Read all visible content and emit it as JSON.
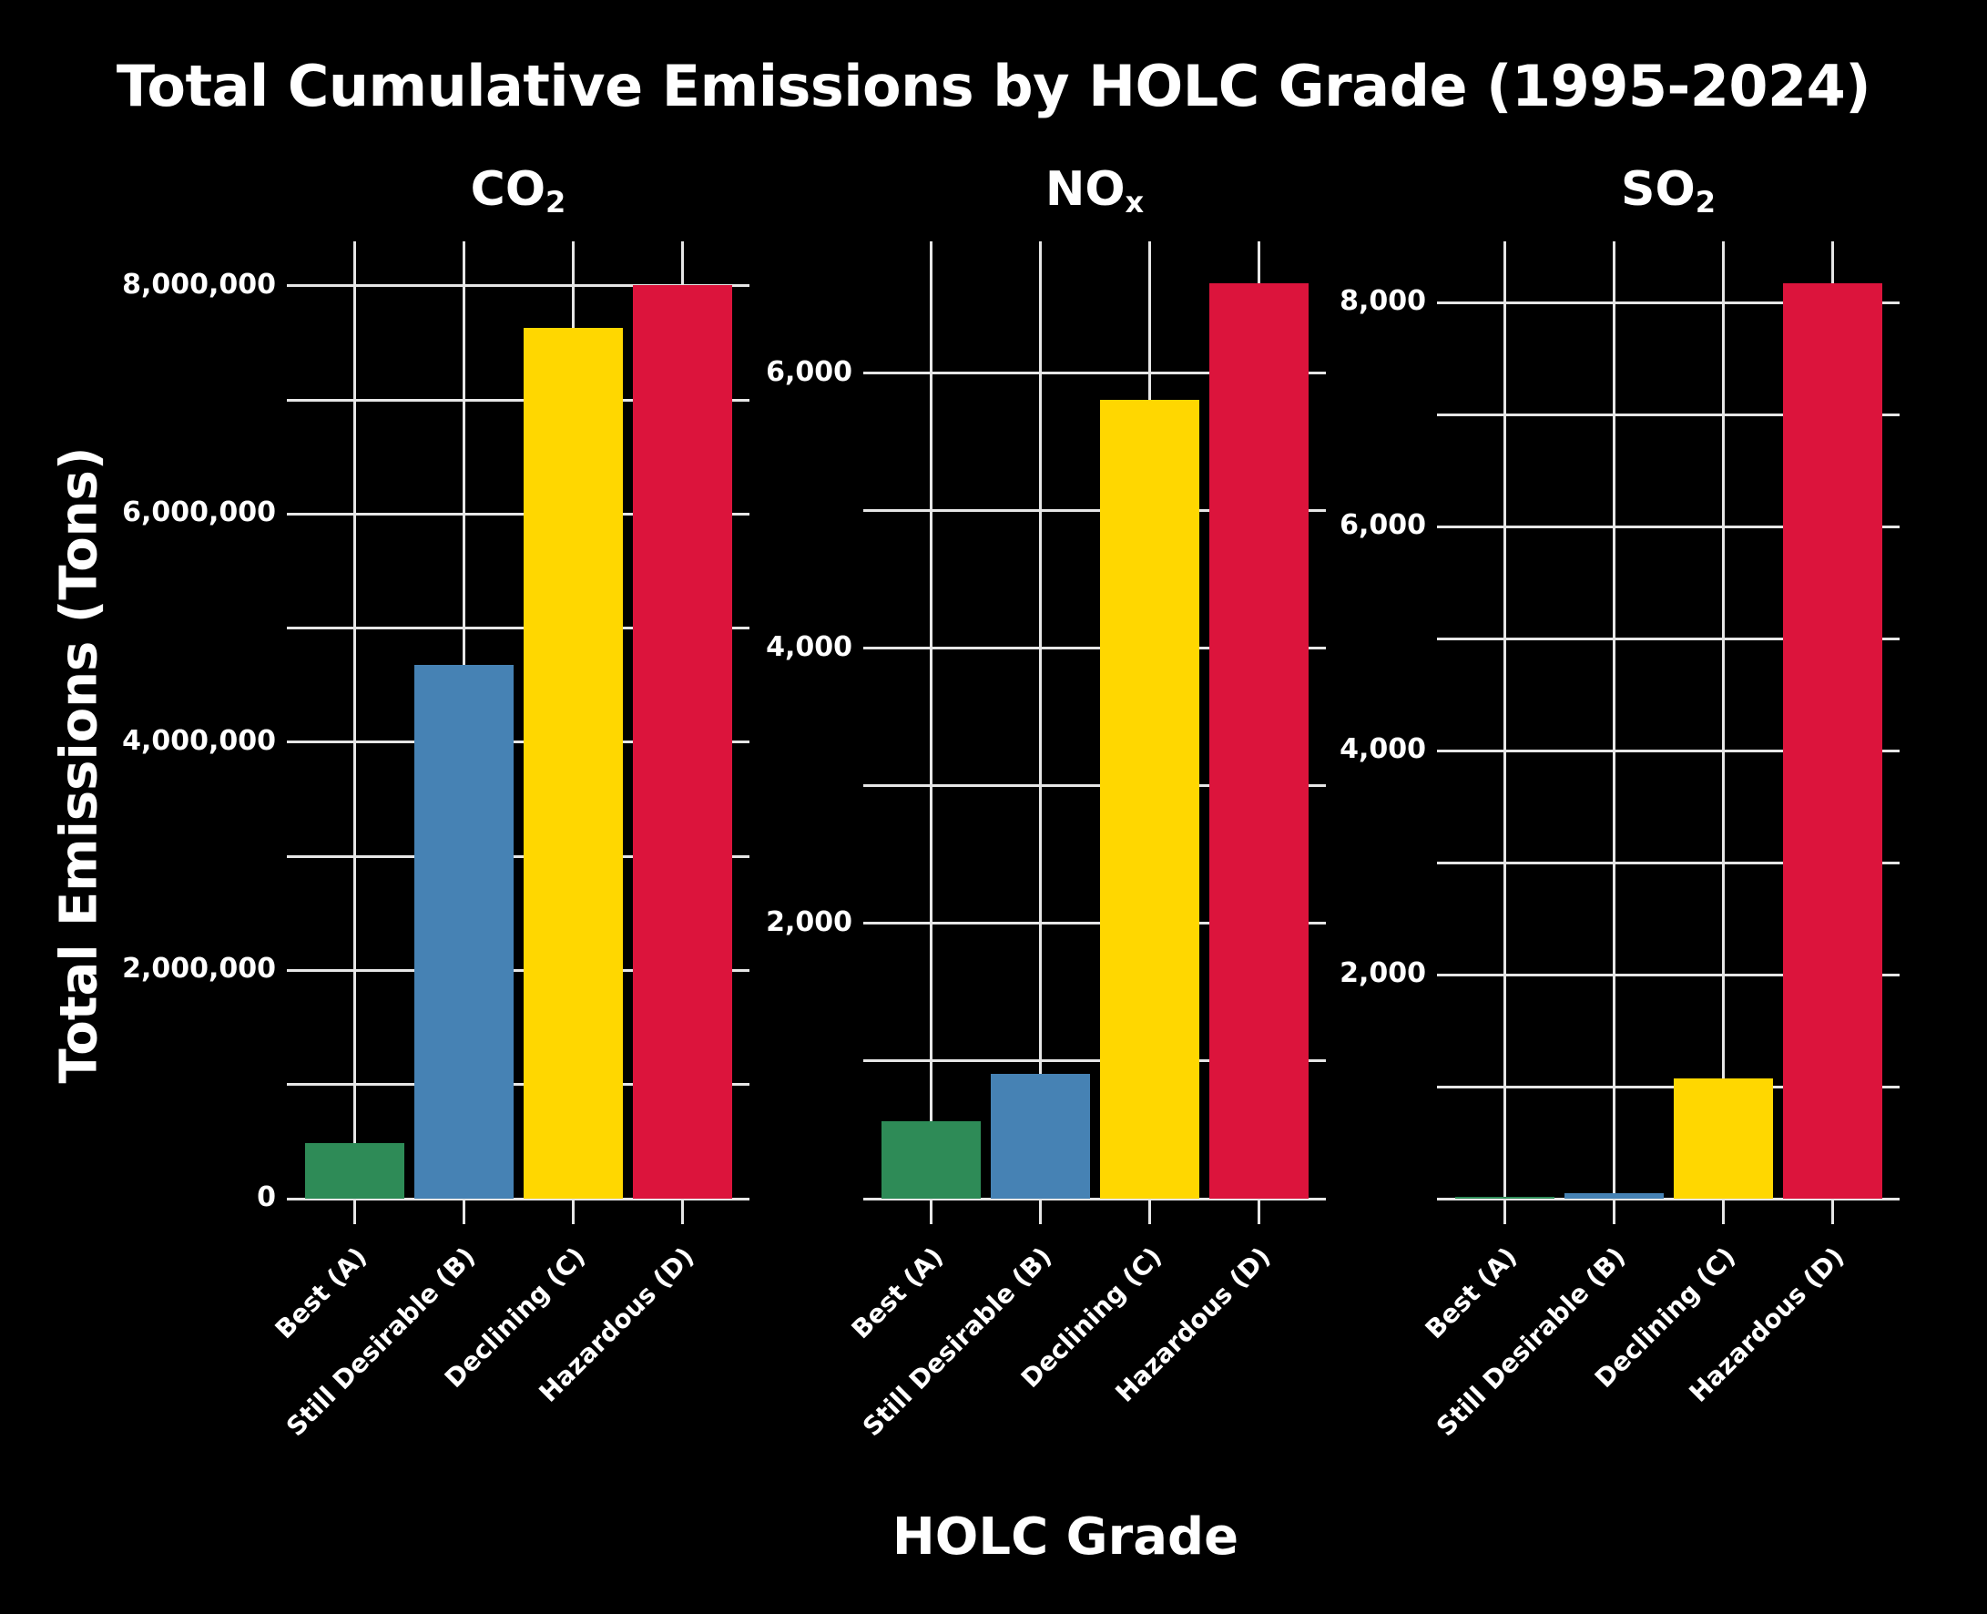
{
  "title": "Total Cumulative Emissions by HOLC Grade (1995-2024)",
  "ylabel": "Total Emissions (Tons)",
  "xlabel": "HOLC Grade",
  "categories": [
    "Best (A)",
    "Still Desirable (B)",
    "Declining (C)",
    "Hazardous (D)"
  ],
  "colors": [
    "#2E8B57",
    "#4682B4",
    "#FFD700",
    "#DC143C"
  ],
  "panels": [
    {
      "name": "CO",
      "sub": "2",
      "ymax": 8390000,
      "ticks": [
        0,
        2000000,
        4000000,
        6000000,
        8000000
      ],
      "tick_labels": [
        "0",
        "2,000,000",
        "4,000,000",
        "6,000,000",
        "8,000,000"
      ],
      "minor_ticks": [
        1000000,
        3000000,
        5000000,
        7000000
      ]
    },
    {
      "name": "NO",
      "sub": "x",
      "ymax": 6960,
      "ticks": [
        2000,
        4000,
        6000
      ],
      "tick_labels": [
        "2,000",
        "4,000",
        "6,000"
      ],
      "minor_ticks": [
        0,
        1000,
        3000,
        5000
      ]
    },
    {
      "name": "SO",
      "sub": "2",
      "ymax": 8546,
      "ticks": [
        2000,
        4000,
        6000,
        8000
      ],
      "tick_labels": [
        "2,000",
        "4,000",
        "6,000",
        "8,000"
      ],
      "minor_ticks": [
        0,
        1000,
        3000,
        5000,
        7000
      ]
    }
  ],
  "chart_data": [
    {
      "type": "bar",
      "title": "CO2",
      "xlabel": "HOLC Grade",
      "ylabel": "Total Emissions (Tons)",
      "categories": [
        "Best (A)",
        "Still Desirable (B)",
        "Declining (C)",
        "Hazardous (D)"
      ],
      "values": [
        490000,
        4680000,
        7630000,
        8010000
      ],
      "ylim": [
        0,
        8390000
      ],
      "yticks": [
        0,
        2000000,
        4000000,
        6000000,
        8000000
      ],
      "grid": true,
      "colors": [
        "#2E8B57",
        "#4682B4",
        "#FFD700",
        "#DC143C"
      ]
    },
    {
      "type": "bar",
      "title": "NOx",
      "xlabel": "HOLC Grade",
      "ylabel": "Total Emissions (Tons)",
      "categories": [
        "Best (A)",
        "Still Desirable (B)",
        "Declining (C)",
        "Hazardous (D)"
      ],
      "values": [
        560,
        905,
        5805,
        6655
      ],
      "ylim": [
        0,
        6960
      ],
      "yticks": [
        2000,
        4000,
        6000
      ],
      "grid": true,
      "colors": [
        "#2E8B57",
        "#4682B4",
        "#FFD700",
        "#DC143C"
      ]
    },
    {
      "type": "bar",
      "title": "SO2",
      "xlabel": "HOLC Grade",
      "ylabel": "Total Emissions (Tons)",
      "categories": [
        "Best (A)",
        "Still Desirable (B)",
        "Declining (C)",
        "Hazardous (D)"
      ],
      "values": [
        12,
        45,
        1072,
        8170
      ],
      "ylim": [
        0,
        8546
      ],
      "yticks": [
        2000,
        4000,
        6000,
        8000
      ],
      "grid": true,
      "colors": [
        "#2E8B57",
        "#4682B4",
        "#FFD700",
        "#DC143C"
      ]
    }
  ],
  "chart_title": "Total Cumulative Emissions by HOLC Grade (1995-2024)"
}
